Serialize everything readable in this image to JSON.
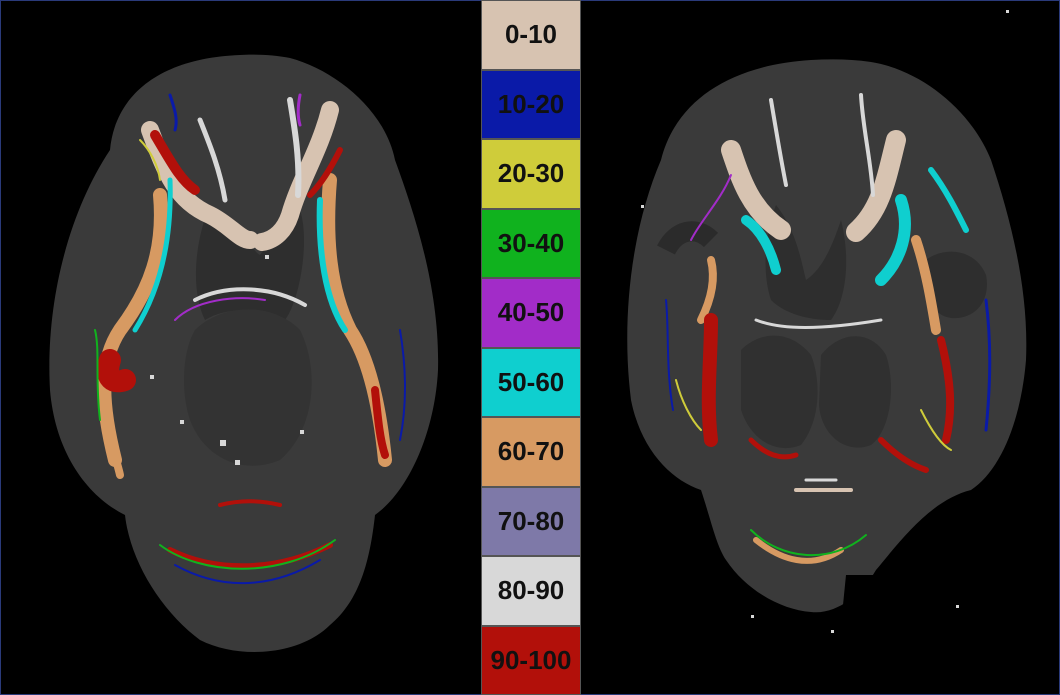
{
  "legend": {
    "entries": [
      {
        "label": "0-10",
        "color": "#d7c3b1"
      },
      {
        "label": "10-20",
        "color": "#0a1aa8"
      },
      {
        "label": "20-30",
        "color": "#cfcc3a"
      },
      {
        "label": "30-40",
        "color": "#10b21e"
      },
      {
        "label": "40-50",
        "color": "#a22cc8"
      },
      {
        "label": "50-60",
        "color": "#0fcfcf"
      },
      {
        "label": "60-70",
        "color": "#d79a62"
      },
      {
        "label": "70-80",
        "color": "#7e79a8"
      },
      {
        "label": "80-90",
        "color": "#d8d8d8"
      },
      {
        "label": "90-100",
        "color": "#b2100a"
      }
    ]
  },
  "images": {
    "left_scan": "axial-brain-slice",
    "right_scan": "axial-brain-slice",
    "tissue_color": "#3a3a3a",
    "background_color": "#000000"
  }
}
